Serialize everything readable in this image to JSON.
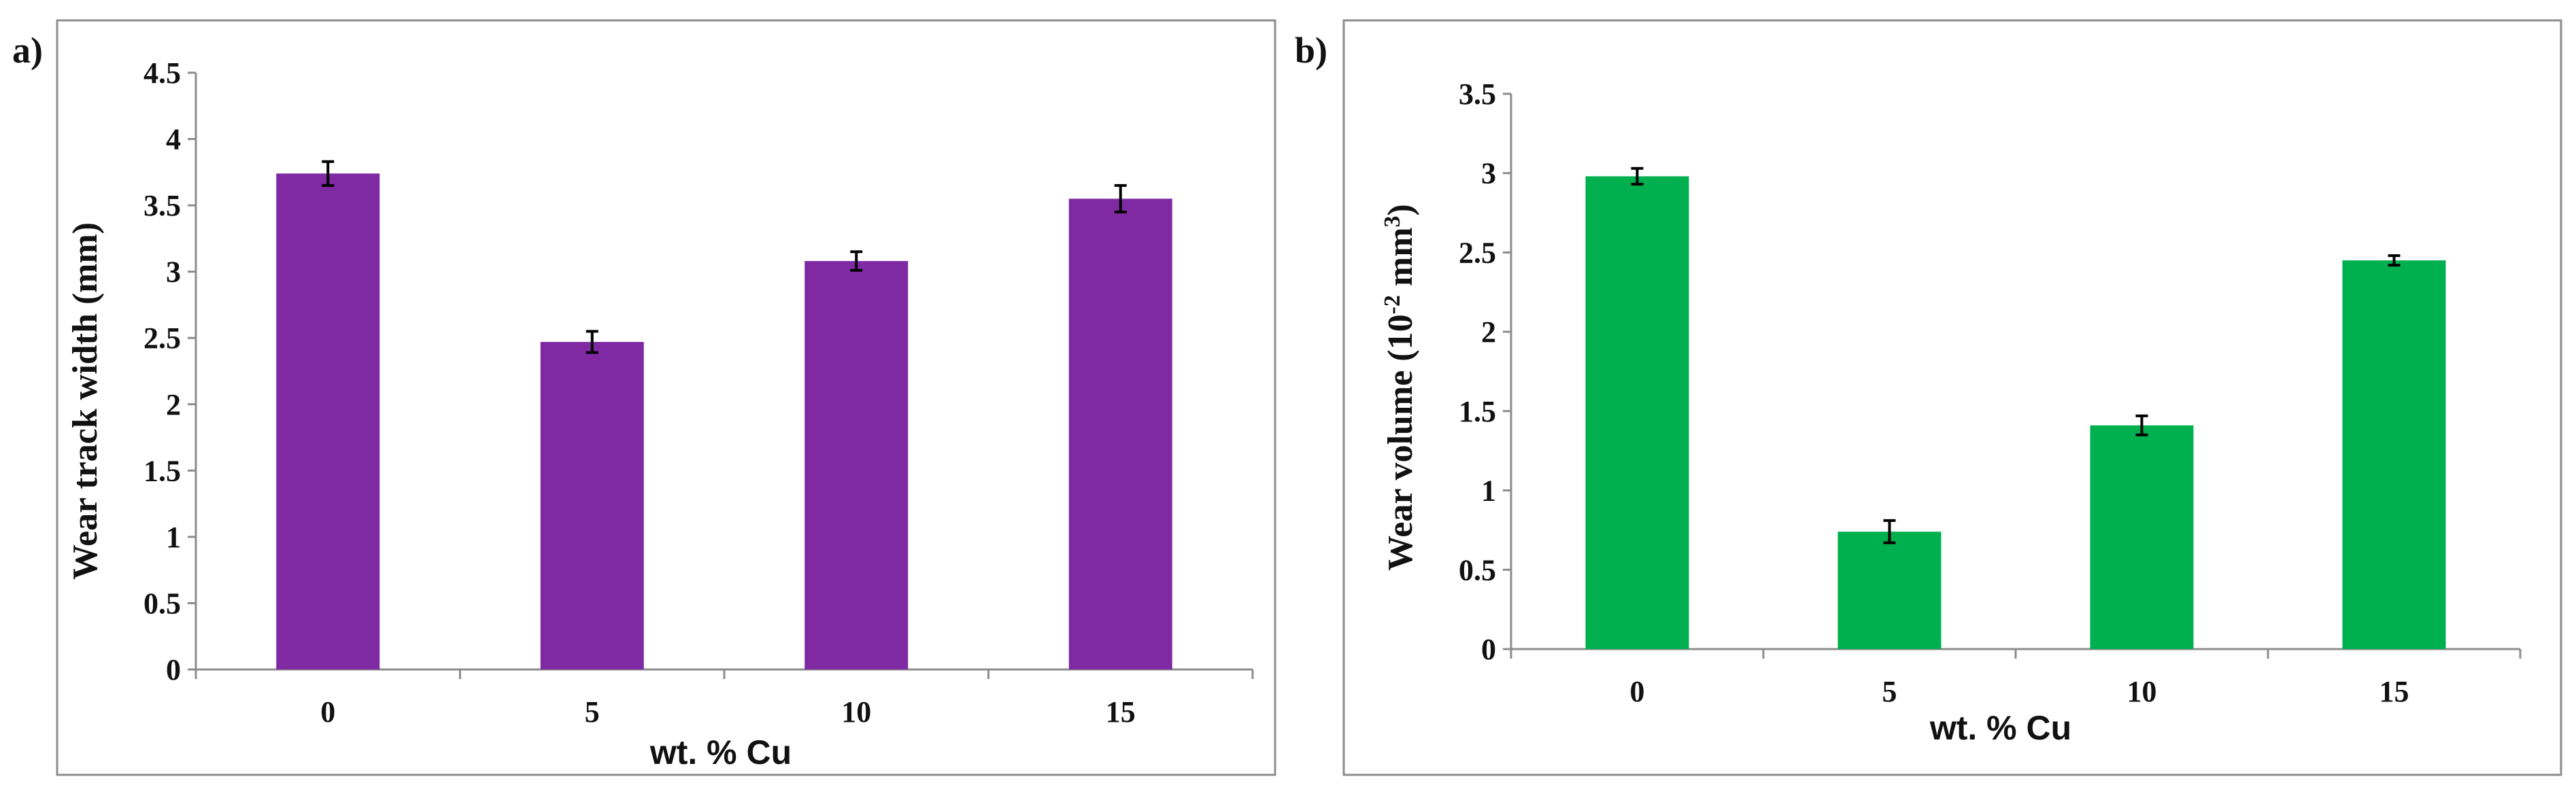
{
  "chart_data": [
    {
      "panel_label": "a)",
      "type": "bar",
      "xlabel": "wt. % Cu",
      "ylabel": "Wear track width (mm)",
      "categories": [
        "0",
        "5",
        "10",
        "15"
      ],
      "values": [
        3.74,
        2.47,
        3.08,
        3.55
      ],
      "errors": [
        0.09,
        0.08,
        0.07,
        0.1
      ],
      "ylim": [
        0,
        4.5
      ],
      "yticks": [
        "0",
        "0.5",
        "1",
        "1.5",
        "2",
        "2.5",
        "3",
        "3.5",
        "4",
        "4.5"
      ],
      "color": "#7f2aa3",
      "grid": false
    },
    {
      "panel_label": "b)",
      "type": "bar",
      "xlabel": "wt. % Cu",
      "ylabel_main": "Wear volume (10",
      "ylabel_sup1": "-2",
      "ylabel_mid": " mm",
      "ylabel_sup2": "3",
      "ylabel_end": ")",
      "categories": [
        "0",
        "5",
        "10",
        "15"
      ],
      "values": [
        2.98,
        0.74,
        1.41,
        2.45
      ],
      "errors": [
        0.05,
        0.07,
        0.06,
        0.03
      ],
      "ylim": [
        0,
        3.5
      ],
      "yticks": [
        "0",
        "0.5",
        "1",
        "1.5",
        "2",
        "2.5",
        "3",
        "3.5"
      ],
      "color": "#00b04f",
      "grid": false
    }
  ]
}
